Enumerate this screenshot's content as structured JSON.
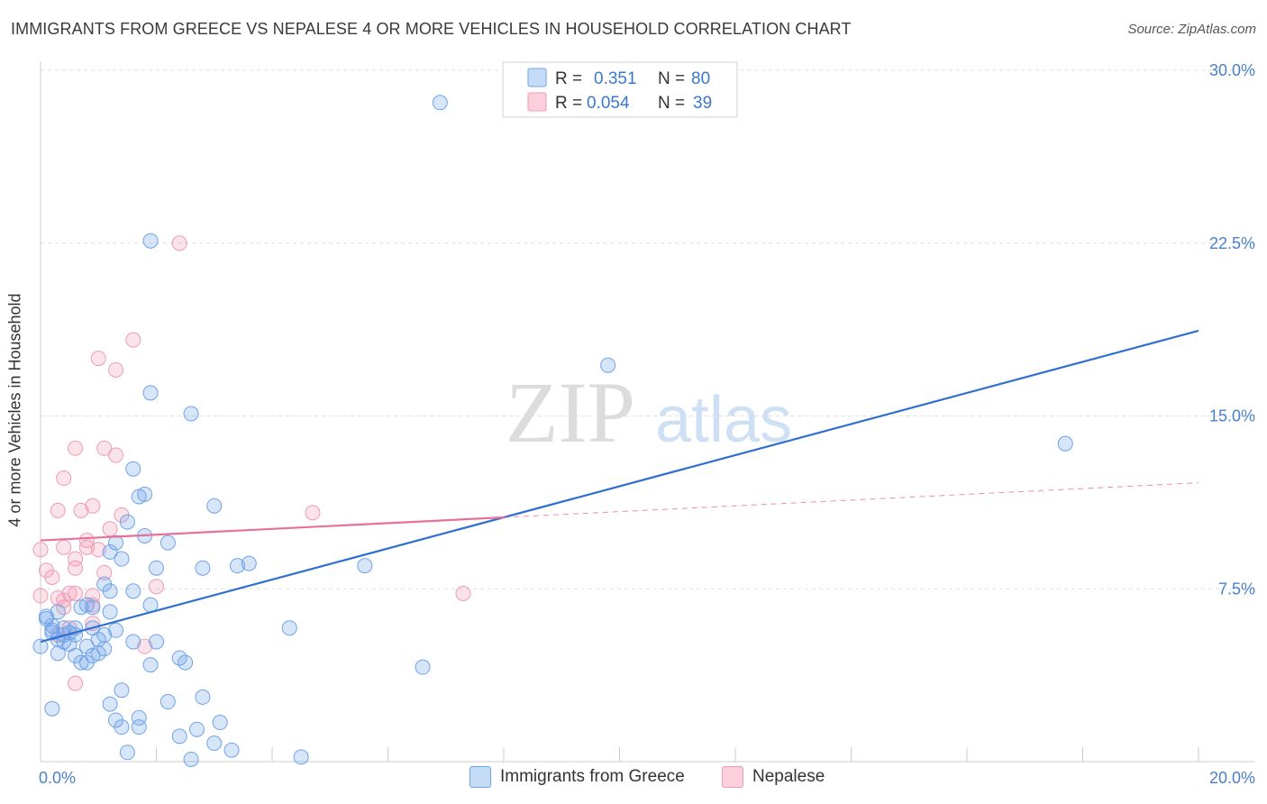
{
  "header": {
    "title": "IMMIGRANTS FROM GREECE VS NEPALESE 4 OR MORE VEHICLES IN HOUSEHOLD CORRELATION CHART",
    "source": "Source: ZipAtlas.com"
  },
  "watermark": {
    "zip": "ZIP",
    "atlas": "atlas"
  },
  "legend": {
    "items": [
      {
        "r_label": "R =",
        "r_value": "0.351",
        "n_label": "N =",
        "n_value": "80"
      },
      {
        "r_label": "R =",
        "r_value": "0.054",
        "n_label": "N =",
        "n_value": "39"
      }
    ]
  },
  "chart_data": {
    "type": "scatter",
    "title": "IMMIGRANTS FROM GREECE VS NEPALESE 4 OR MORE VEHICLES IN HOUSEHOLD CORRELATION CHART",
    "xlabel": "",
    "ylabel": "4 or more Vehicles in Household",
    "xlim": [
      0,
      20
    ],
    "ylim": [
      0,
      30
    ],
    "x_tick_labels": [
      "0.0%",
      "20.0%"
    ],
    "y_ticks": [
      7.5,
      15.0,
      22.5,
      30.0
    ],
    "y_tick_labels": [
      "7.5%",
      "15.0%",
      "22.5%",
      "30.0%"
    ],
    "grid": "horizontal dashed",
    "colors": {
      "greece": "#6fa3e8",
      "nepalese": "#f09ab5",
      "greece_line": "#2f6fd0",
      "nepalese_line": "#e8709a",
      "tick_label": "#4a80cc"
    },
    "series": [
      {
        "name": "Immigrants from Greece",
        "R": 0.351,
        "N": 80,
        "trend": {
          "x0": 0,
          "y0": 5.2,
          "x1": 20,
          "y1": 18.7
        },
        "points": [
          [
            6.9,
            28.6
          ],
          [
            1.9,
            22.6
          ],
          [
            1.9,
            16.0
          ],
          [
            2.6,
            15.1
          ],
          [
            9.8,
            17.2
          ],
          [
            17.7,
            13.8
          ],
          [
            1.6,
            12.7
          ],
          [
            1.7,
            11.5
          ],
          [
            1.8,
            11.6
          ],
          [
            3.0,
            11.1
          ],
          [
            1.5,
            10.4
          ],
          [
            1.8,
            9.8
          ],
          [
            1.3,
            9.5
          ],
          [
            2.2,
            9.5
          ],
          [
            1.4,
            8.8
          ],
          [
            1.2,
            9.1
          ],
          [
            2.0,
            8.4
          ],
          [
            2.8,
            8.4
          ],
          [
            3.4,
            8.5
          ],
          [
            3.6,
            8.6
          ],
          [
            5.6,
            8.5
          ],
          [
            1.1,
            7.7
          ],
          [
            1.2,
            7.4
          ],
          [
            1.6,
            7.4
          ],
          [
            1.9,
            6.8
          ],
          [
            0.7,
            6.7
          ],
          [
            0.8,
            6.8
          ],
          [
            0.9,
            6.7
          ],
          [
            1.2,
            6.5
          ],
          [
            0.3,
            6.5
          ],
          [
            0.1,
            6.3
          ],
          [
            0.2,
            5.9
          ],
          [
            0.4,
            5.8
          ],
          [
            0.6,
            5.8
          ],
          [
            0.9,
            5.8
          ],
          [
            0.2,
            5.6
          ],
          [
            0.4,
            5.5
          ],
          [
            0.5,
            5.6
          ],
          [
            0.6,
            5.5
          ],
          [
            1.0,
            5.3
          ],
          [
            1.1,
            5.5
          ],
          [
            1.6,
            5.2
          ],
          [
            4.3,
            5.8
          ],
          [
            0.0,
            5.0
          ],
          [
            0.5,
            5.1
          ],
          [
            0.8,
            5.0
          ],
          [
            0.3,
            4.7
          ],
          [
            0.6,
            4.6
          ],
          [
            0.9,
            4.6
          ],
          [
            1.0,
            4.7
          ],
          [
            0.7,
            4.3
          ],
          [
            0.8,
            4.3
          ],
          [
            1.9,
            4.2
          ],
          [
            2.4,
            4.5
          ],
          [
            2.5,
            4.3
          ],
          [
            6.6,
            4.1
          ],
          [
            1.4,
            3.1
          ],
          [
            1.2,
            2.5
          ],
          [
            2.2,
            2.6
          ],
          [
            2.8,
            2.8
          ],
          [
            0.2,
            2.3
          ],
          [
            1.3,
            1.8
          ],
          [
            1.7,
            1.9
          ],
          [
            1.4,
            1.5
          ],
          [
            1.7,
            1.5
          ],
          [
            2.7,
            1.4
          ],
          [
            3.1,
            1.7
          ],
          [
            2.4,
            1.1
          ],
          [
            3.0,
            0.8
          ],
          [
            1.5,
            0.4
          ],
          [
            3.3,
            0.5
          ],
          [
            4.5,
            0.2
          ],
          [
            2.6,
            0.1
          ],
          [
            0.1,
            6.2
          ],
          [
            0.2,
            5.7
          ],
          [
            0.3,
            5.3
          ],
          [
            0.4,
            5.2
          ],
          [
            1.1,
            4.9
          ],
          [
            1.3,
            5.7
          ],
          [
            2.0,
            5.2
          ]
        ]
      },
      {
        "name": "Nepalese",
        "R": 0.054,
        "N": 39,
        "trend": {
          "x0": 0,
          "y0": 9.6,
          "x1": 8.0,
          "y1": 10.6,
          "dash_to_x": 20,
          "dash_to_y": 12.1
        },
        "points": [
          [
            2.4,
            22.5
          ],
          [
            1.6,
            18.3
          ],
          [
            1.0,
            17.5
          ],
          [
            1.3,
            17.0
          ],
          [
            1.1,
            13.6
          ],
          [
            0.6,
            13.6
          ],
          [
            1.3,
            13.3
          ],
          [
            0.4,
            12.3
          ],
          [
            0.9,
            11.1
          ],
          [
            0.3,
            10.9
          ],
          [
            0.7,
            10.9
          ],
          [
            1.4,
            10.7
          ],
          [
            4.7,
            10.8
          ],
          [
            1.2,
            10.1
          ],
          [
            0.8,
            9.6
          ],
          [
            0.8,
            9.3
          ],
          [
            0.4,
            9.3
          ],
          [
            0.0,
            9.2
          ],
          [
            1.0,
            9.2
          ],
          [
            0.6,
            8.8
          ],
          [
            0.6,
            8.4
          ],
          [
            1.1,
            8.2
          ],
          [
            0.2,
            8.0
          ],
          [
            0.1,
            8.3
          ],
          [
            2.0,
            7.6
          ],
          [
            0.5,
            7.3
          ],
          [
            0.6,
            7.3
          ],
          [
            0.4,
            7.0
          ],
          [
            0.9,
            7.2
          ],
          [
            0.3,
            7.1
          ],
          [
            0.0,
            7.2
          ],
          [
            7.3,
            7.3
          ],
          [
            0.4,
            6.7
          ],
          [
            0.9,
            6.8
          ],
          [
            0.9,
            6.0
          ],
          [
            0.5,
            5.8
          ],
          [
            0.3,
            5.5
          ],
          [
            1.8,
            5.0
          ],
          [
            0.6,
            3.4
          ]
        ]
      }
    ]
  },
  "axes": {
    "x_min_label": "0.0%",
    "x_max_label": "20.0%"
  },
  "bottom_legend": {
    "series_a": "Immigrants from Greece",
    "series_b": "Nepalese"
  }
}
